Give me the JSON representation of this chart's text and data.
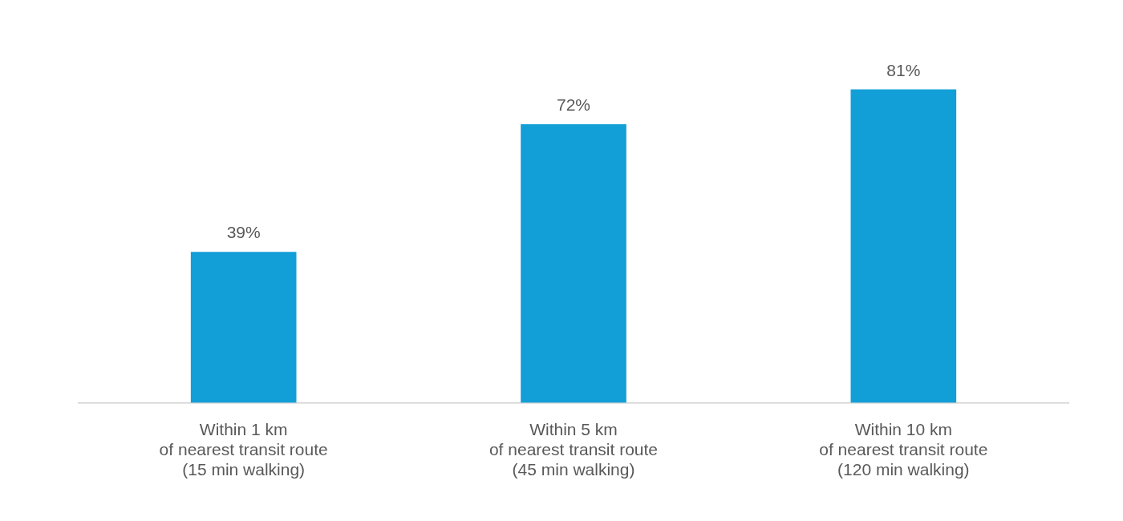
{
  "chart_data": {
    "type": "bar",
    "categories": [
      "Within 1 km\nof nearest transit route\n(15 min walking)",
      "Within 5 km\nof nearest transit route\n(45 min walking)",
      "Within 10 km\nof nearest transit route\n(120 min walking)"
    ],
    "values": [
      39,
      72,
      81
    ],
    "value_labels": [
      "39%",
      "72%",
      "81%"
    ],
    "color": "#129fd8",
    "grid": false,
    "legend": false
  }
}
